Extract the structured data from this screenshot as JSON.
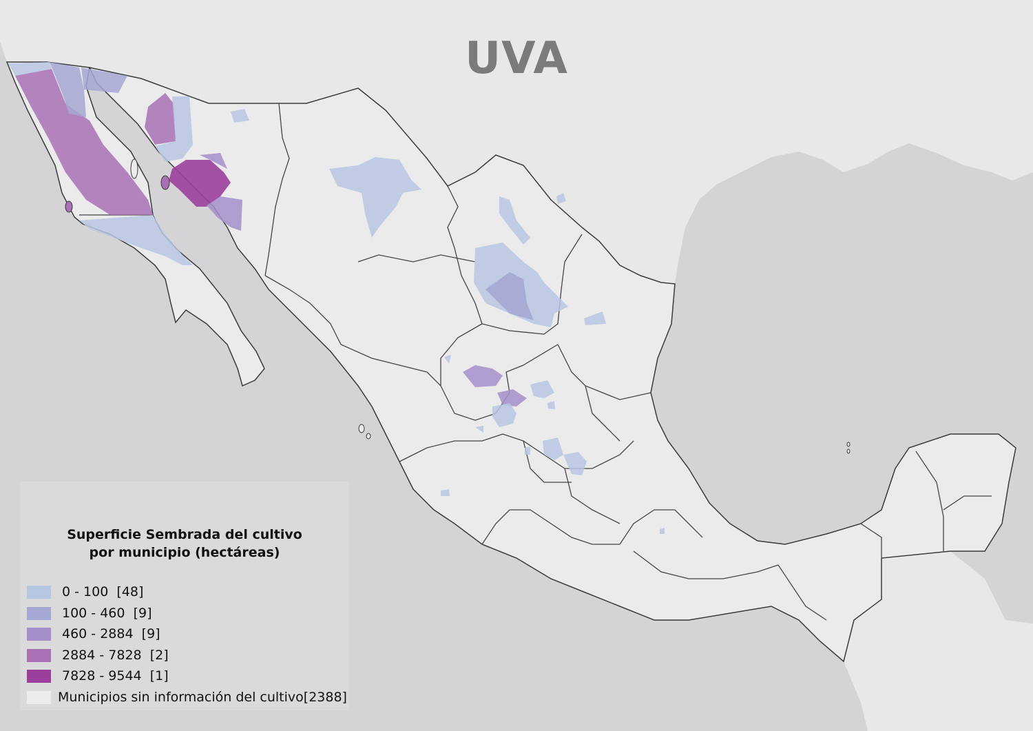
{
  "map_title": "UVA",
  "legend": {
    "title_line1": "Superficie Sembrada del cultivo",
    "title_line2": "por municipio (hectáreas)",
    "classes": [
      {
        "range": "0 - 100",
        "count": "[48]",
        "color": "#b7c7e2"
      },
      {
        "range": "100 - 460",
        "count": "[9]",
        "color": "#a5a8d2"
      },
      {
        "range": "460 - 2884",
        "count": "[9]",
        "color": "#a48fcb"
      },
      {
        "range": "2884 - 7828",
        "count": "[2]",
        "color": "#a871b5"
      },
      {
        "range": "7828 - 9544",
        "count": "[1]",
        "color": "#9c3f9c"
      }
    ],
    "no_data": {
      "label": "Municipios sin información del cultivo",
      "count": "[2388]",
      "color": "#ececec"
    }
  },
  "colors": {
    "ocean": "#d4d4d7",
    "land_other": "#eaeaea",
    "mexico_land": "#ebebeb",
    "state_border": "#3a3a3a"
  }
}
